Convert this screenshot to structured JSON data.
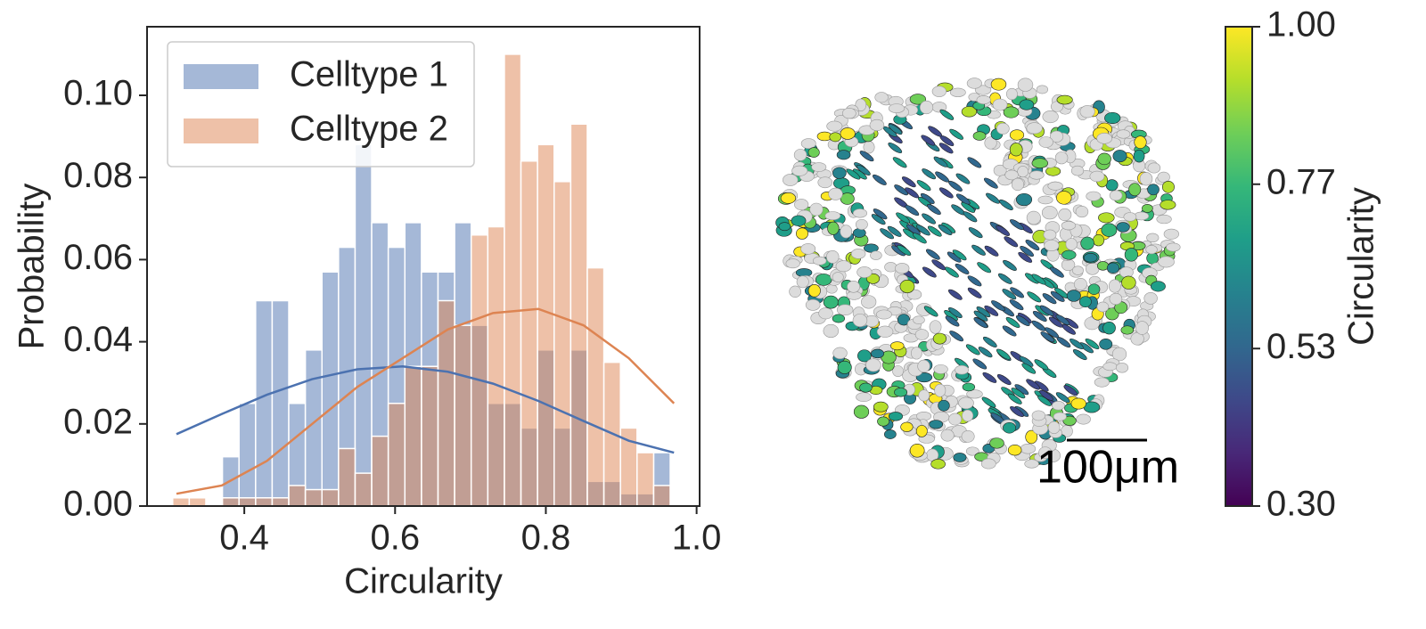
{
  "chart_data": [
    {
      "type": "histogram",
      "xlabel": "Circularity",
      "ylabel": "Probability",
      "bins": [
        0.305,
        0.327,
        0.349,
        0.371,
        0.393,
        0.415,
        0.437,
        0.459,
        0.481,
        0.503,
        0.525,
        0.547,
        0.569,
        0.591,
        0.613,
        0.635,
        0.657,
        0.679,
        0.701,
        0.723,
        0.745,
        0.767,
        0.789,
        0.811,
        0.833,
        0.855,
        0.877,
        0.899,
        0.921,
        0.943,
        0.965
      ],
      "series": [
        {
          "name": "Celltype 1",
          "color": "#4c72b0",
          "values": [
            0,
            0,
            0,
            0.012,
            0.025,
            0.05,
            0.05,
            0.025,
            0.038,
            0.057,
            0.063,
            0.088,
            0.069,
            0.063,
            0.069,
            0.057,
            0.057,
            0.069,
            0.044,
            0.025,
            0.025,
            0.019,
            0.038,
            0.019,
            0.038,
            0.006,
            0.006,
            0.003,
            0.003,
            0.013
          ],
          "kde_x": [
            0.31,
            0.37,
            0.43,
            0.49,
            0.55,
            0.61,
            0.67,
            0.73,
            0.79,
            0.85,
            0.91,
            0.97
          ],
          "kde_values": [
            0.0175,
            0.0224,
            0.0271,
            0.0309,
            0.0333,
            0.034,
            0.0327,
            0.0298,
            0.0256,
            0.0207,
            0.0159,
            0.013
          ]
        },
        {
          "name": "Celltype 2",
          "color": "#dd8452",
          "values": [
            0.002,
            0.002,
            0,
            0.002,
            0.002,
            0.002,
            0.002,
            0.005,
            0.004,
            0.004,
            0.014,
            0.008,
            0.017,
            0.025,
            0.034,
            0.034,
            0.05,
            0.044,
            0.066,
            0.068,
            0.11,
            0.084,
            0.088,
            0.079,
            0.093,
            0.058,
            0.035,
            0.019,
            0.013,
            0.005
          ],
          "kde_x": [
            0.31,
            0.37,
            0.43,
            0.49,
            0.55,
            0.61,
            0.67,
            0.73,
            0.79,
            0.85,
            0.91,
            0.97
          ],
          "kde_values": [
            0.003,
            0.005,
            0.011,
            0.02,
            0.029,
            0.036,
            0.043,
            0.047,
            0.048,
            0.044,
            0.036,
            0.025
          ]
        }
      ],
      "xlim": [
        0.271,
        1.004
      ],
      "ylim": [
        0,
        0.1167
      ],
      "xticks": [
        0.4,
        0.6,
        0.8,
        {
          "value": 1.0,
          "label": "1.0"
        }
      ],
      "yticks": [
        {
          "value": 0,
          "label": "0.00"
        },
        {
          "value": 0.02,
          "label": "0.02"
        },
        {
          "value": 0.04,
          "label": "0.04"
        },
        {
          "value": 0.06,
          "label": "0.06"
        },
        {
          "value": 0.08,
          "label": "0.08"
        },
        {
          "value": 0.1,
          "label": "0.10"
        }
      ],
      "legend": "upper left"
    },
    {
      "type": "image",
      "scale_bar_label": "100μm",
      "colorbar": {
        "label": "Circularity",
        "colormap": "viridis",
        "lim": [
          0.3,
          1.0
        ],
        "ticks": [
          {
            "value": 0.3,
            "label": "0.30"
          },
          0.53,
          0.77,
          {
            "value": 1.0,
            "label": "1.00"
          }
        ]
      }
    }
  ]
}
